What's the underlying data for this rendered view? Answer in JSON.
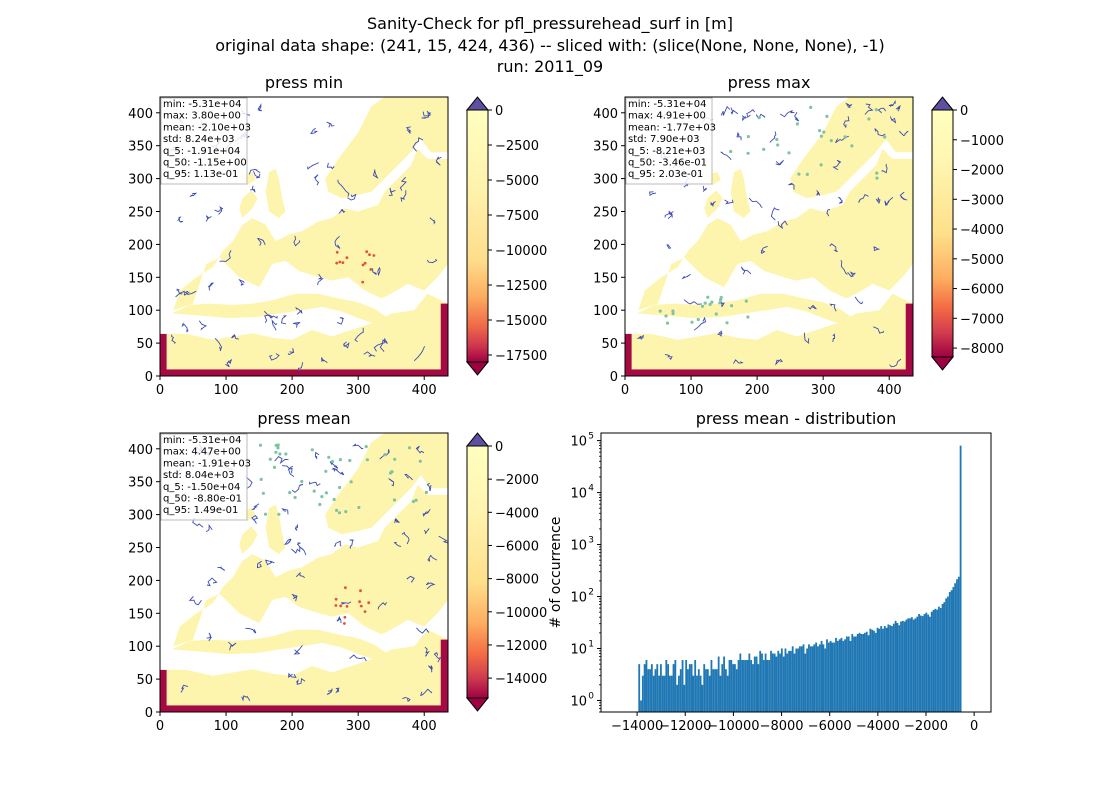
{
  "figure": {
    "title_lines": [
      "Sanity-Check for pfl_pressurehead_surf in [m]",
      "original data shape: (241, 15, 424, 436) -- sliced with: (slice(None, None, None), -1)",
      "run: 2011_09"
    ]
  },
  "chart_data": [
    {
      "type": "heatmap",
      "title": "press min",
      "xlim": [
        0,
        436
      ],
      "ylim": [
        0,
        424
      ],
      "xticks": [
        0,
        100,
        200,
        300,
        400
      ],
      "yticks": [
        0,
        50,
        100,
        150,
        200,
        250,
        300,
        350,
        400
      ],
      "stats_lines": [
        "min: -5.31e+04",
        "max: 3.80e+00",
        "mean: -2.10e+03",
        "std: 8.24e+03",
        "q_5: -1.91e+04",
        "q_50: -1.15e+00",
        "q_95: 1.13e-01"
      ],
      "colorbar": {
        "colormap": "Spectral",
        "vmin": -18000,
        "vmax": 0,
        "ticks": [
          0,
          -2500,
          -5000,
          -7500,
          -10000,
          -12500,
          -15000,
          -17500
        ],
        "tick_labels": [
          "0",
          "−2500",
          "−5000",
          "−7500",
          "−10000",
          "−12500",
          "−15000",
          "−17500"
        ],
        "extend": "both"
      }
    },
    {
      "type": "heatmap",
      "title": "press max",
      "xlim": [
        0,
        436
      ],
      "ylim": [
        0,
        424
      ],
      "xticks": [
        0,
        100,
        200,
        300,
        400
      ],
      "yticks": [
        0,
        50,
        100,
        150,
        200,
        250,
        300,
        350,
        400
      ],
      "stats_lines": [
        "min: -5.31e+04",
        "max: 4.91e+00",
        "mean: -1.77e+03",
        "std: 7.90e+03",
        "q_5: -8.21e+03",
        "q_50: -3.46e-01",
        "q_95: 2.03e-01"
      ],
      "colorbar": {
        "colormap": "Spectral",
        "vmin": -8300,
        "vmax": 0,
        "ticks": [
          0,
          -1000,
          -2000,
          -3000,
          -4000,
          -5000,
          -6000,
          -7000,
          -8000
        ],
        "tick_labels": [
          "0",
          "−1000",
          "−2000",
          "−3000",
          "−4000",
          "−5000",
          "−6000",
          "−7000",
          "−8000"
        ],
        "extend": "both"
      }
    },
    {
      "type": "heatmap",
      "title": "press mean",
      "xlim": [
        0,
        436
      ],
      "ylim": [
        0,
        424
      ],
      "xticks": [
        0,
        100,
        200,
        300,
        400
      ],
      "yticks": [
        0,
        50,
        100,
        150,
        200,
        250,
        300,
        350,
        400
      ],
      "stats_lines": [
        "min: -5.31e+04",
        "max: 4.47e+00",
        "mean: -1.91e+03",
        "std: 8.04e+03",
        "q_5: -1.50e+04",
        "q_50: -8.80e-01",
        "q_95: 1.49e-01"
      ],
      "colorbar": {
        "colormap": "Spectral",
        "vmin": -15200,
        "vmax": 0,
        "ticks": [
          0,
          -2000,
          -4000,
          -6000,
          -8000,
          -10000,
          -12000,
          -14000
        ],
        "tick_labels": [
          "0",
          "−2000",
          "−4000",
          "−6000",
          "−8000",
          "−10000",
          "−12000",
          "−14000"
        ],
        "extend": "both"
      }
    },
    {
      "type": "bar",
      "title": "press mean - distribution",
      "xlabel": "",
      "ylabel": "# of occurrence",
      "yscale": "log",
      "xlim": [
        -15500,
        700
      ],
      "ylim": [
        0.6,
        140000
      ],
      "xticks": [
        -14000,
        -12000,
        -10000,
        -8000,
        -6000,
        -4000,
        -2000,
        0
      ],
      "xtick_labels": [
        "−14000",
        "−12000",
        "−10000",
        "−8000",
        "−6000",
        "−4000",
        "−2000",
        "0"
      ],
      "yticks": [
        1,
        10,
        100,
        1000,
        10000,
        100000
      ],
      "ytick_labels": [
        "10^0",
        "10^1",
        "10^2",
        "10^3",
        "10^4",
        "10^5"
      ],
      "bar_color": "#1f77b4",
      "bins": {
        "start": -15000,
        "width": 75
      },
      "values": [
        0,
        0,
        0,
        0,
        0,
        0,
        0,
        0,
        0,
        0,
        0,
        0,
        0,
        0,
        5,
        1,
        3,
        5,
        6,
        4,
        4,
        5,
        3,
        4,
        5,
        3,
        5,
        3,
        3,
        6,
        5,
        3,
        3,
        5,
        6,
        2,
        3,
        4,
        6,
        2,
        6,
        4,
        5,
        5,
        3,
        6,
        3,
        4,
        3,
        2,
        5,
        4,
        4,
        3,
        6,
        4,
        4,
        4,
        7,
        3,
        5,
        7,
        4,
        3,
        6,
        6,
        5,
        5,
        4,
        6,
        8,
        6,
        6,
        6,
        6,
        8,
        6,
        5,
        7,
        7,
        5,
        9,
        8,
        6,
        8,
        6,
        6,
        9,
        8,
        8,
        7,
        9,
        8,
        10,
        7,
        10,
        8,
        9,
        9,
        11,
        8,
        10,
        10,
        11,
        11,
        12,
        8,
        10,
        12,
        11,
        11,
        12,
        13,
        11,
        12,
        14,
        12,
        10,
        15,
        13,
        14,
        13,
        13,
        16,
        14,
        15,
        16,
        14,
        15,
        17,
        17,
        14,
        19,
        17,
        17,
        19,
        20,
        19,
        19,
        20,
        21,
        18,
        24,
        23,
        22,
        20,
        25,
        24,
        27,
        24,
        27,
        25,
        29,
        28,
        27,
        30,
        34,
        31,
        28,
        33,
        34,
        33,
        36,
        38,
        38,
        40,
        36,
        38,
        41,
        46,
        43,
        42,
        46,
        49,
        45,
        41,
        51,
        55,
        58,
        56,
        64,
        60,
        72,
        78,
        92,
        100,
        122,
        132,
        153,
        180,
        215,
        240,
        80000
      ]
    }
  ]
}
